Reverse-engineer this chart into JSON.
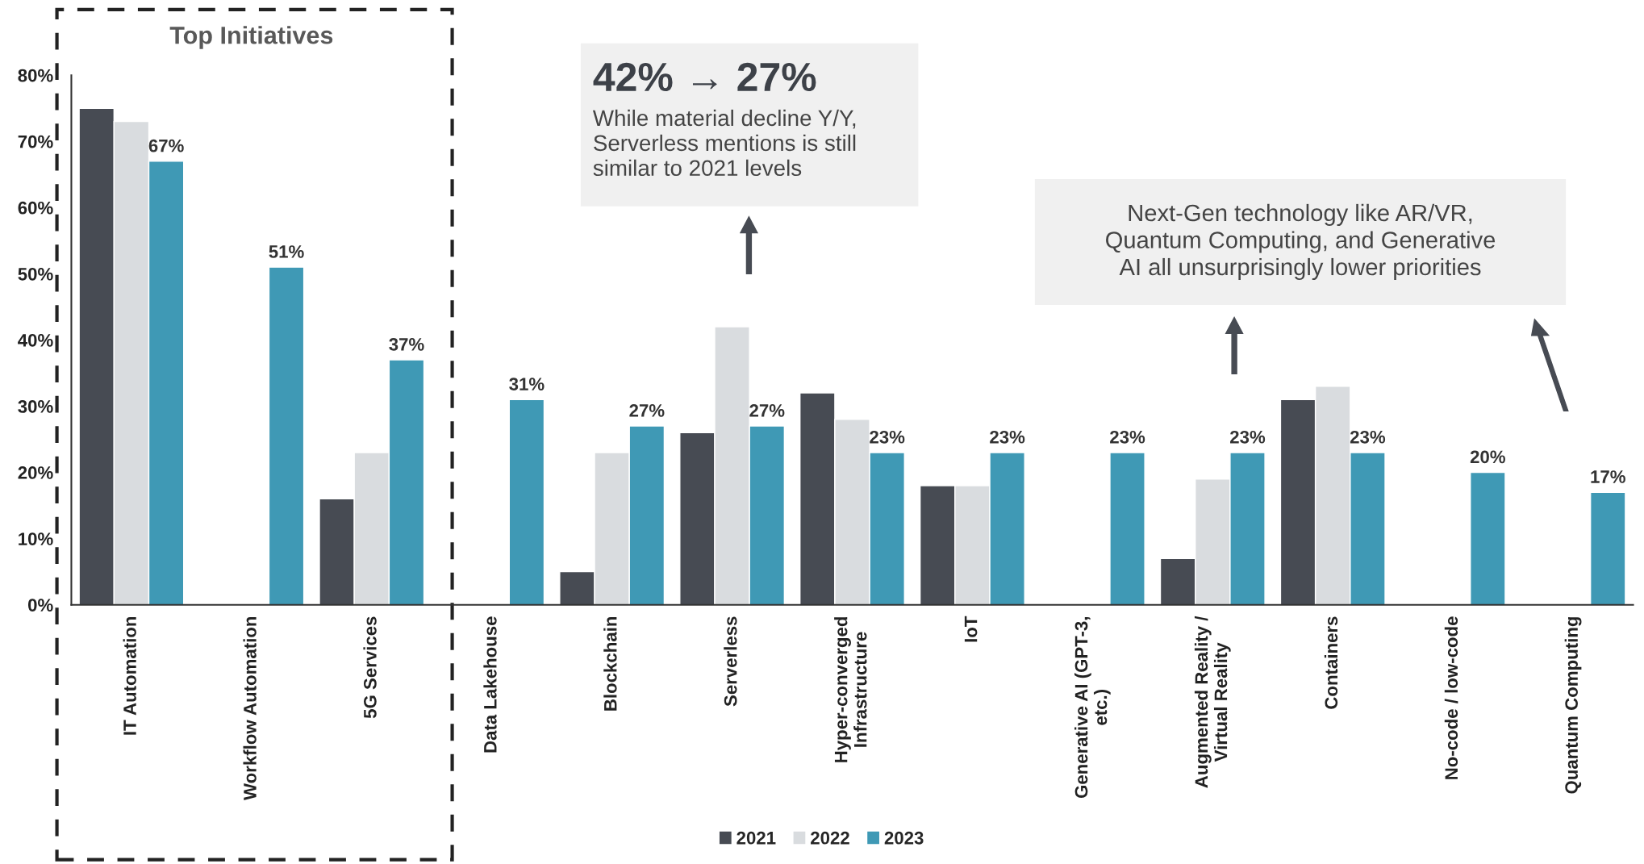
{
  "chart_data": {
    "type": "bar",
    "categories": [
      "IT Automation",
      "Workflow Automation",
      "5G Services",
      "Data Lakehouse",
      "Blockchain",
      "Serverless",
      "Hyper-converged\nInfrastructure",
      "IoT",
      "Generative AI (GPT-3,\netc.)",
      "Augmented Reality /\nVirtual Reality",
      "Containers",
      "No-code / low-code",
      "Quantum Computing"
    ],
    "series": [
      {
        "name": "2021",
        "color": "#474b53",
        "values": [
          75,
          null,
          16,
          null,
          5,
          26,
          32,
          18,
          null,
          7,
          31,
          null,
          null
        ]
      },
      {
        "name": "2022",
        "color": "#d9dcdf",
        "values": [
          73,
          null,
          23,
          null,
          23,
          42,
          28,
          18,
          null,
          19,
          33,
          null,
          null
        ]
      },
      {
        "name": "2023",
        "color": "#3f99b5",
        "values": [
          67,
          51,
          37,
          31,
          27,
          27,
          23,
          23,
          23,
          23,
          23,
          20,
          17
        ],
        "value_labels": [
          "67%",
          "51%",
          "37%",
          "31%",
          "27%",
          "27%",
          "23%",
          "23%",
          "23%",
          "23%",
          "23%",
          "20%",
          "17%"
        ]
      }
    ],
    "ylim": [
      0,
      80
    ],
    "yticks": [
      {
        "value": 0,
        "label": "0%"
      },
      {
        "value": 10,
        "label": "10%"
      },
      {
        "value": 20,
        "label": "20%"
      },
      {
        "value": 30,
        "label": "30%"
      },
      {
        "value": 40,
        "label": "40%"
      },
      {
        "value": 50,
        "label": "50%"
      },
      {
        "value": 60,
        "label": "60%"
      },
      {
        "value": 70,
        "label": "70%"
      },
      {
        "value": 80,
        "label": "80%"
      }
    ],
    "grid": false,
    "legend": "bottom",
    "annotations": [
      "Top Initiatives",
      "42% → 27%",
      "While material decline Y/Y,\nServerless mentions is still\nsimilar to 2021 levels",
      "Next-Gen technology like AR/VR,\nQuantum Computing, and Generative\nAI all unsurprisingly lower priorities"
    ]
  }
}
